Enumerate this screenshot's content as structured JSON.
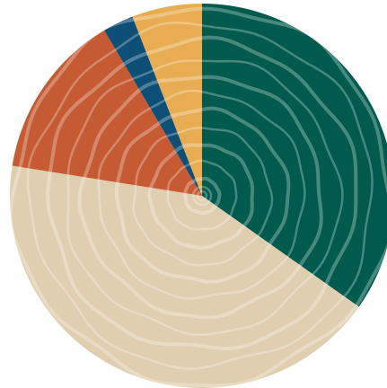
{
  "chart_data": {
    "type": "pie",
    "title": "",
    "start_angle_deg": 0,
    "direction": "clockwise",
    "legend": "none",
    "slices": [
      {
        "value": 34.8,
        "color": "#005a4e"
      },
      {
        "value": 42.7,
        "color": "#dfcfb0"
      },
      {
        "value": 14.0,
        "color": "#c65a33"
      },
      {
        "value": 2.6,
        "color": "#0e4f78"
      },
      {
        "value": 5.9,
        "color": "#e8ad52"
      }
    ],
    "ring_texture": {
      "style": "tree-rings",
      "ring_color": "#ffffff",
      "ring_opacity": 0.28,
      "ring_count": 11
    }
  }
}
